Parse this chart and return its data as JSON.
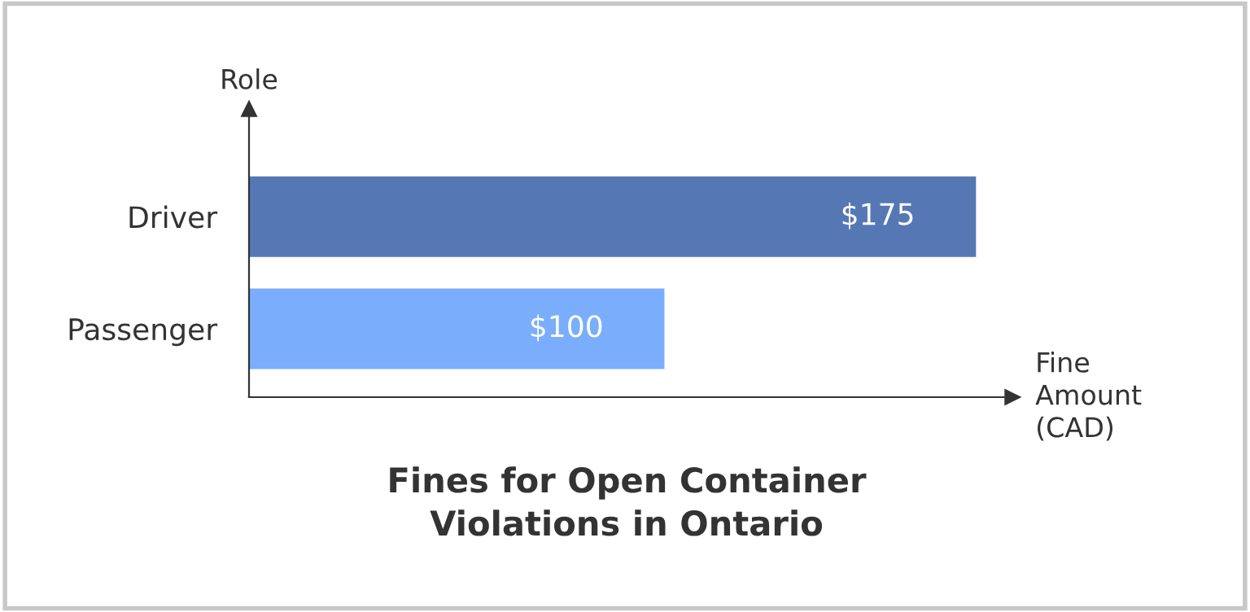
{
  "chart_data": {
    "type": "bar",
    "orientation": "horizontal",
    "title": "Fines for Open Container\nViolations in Ontario",
    "xlabel": "Fine\nAmount\n(CAD)",
    "ylabel": "Role",
    "categories": [
      "Driver",
      "Passenger"
    ],
    "values": [
      175,
      100
    ],
    "colors": [
      "#5578b5",
      "#7aaefc"
    ],
    "value_labels": [
      "$175",
      "$100"
    ],
    "grid": false,
    "tick_labels": "y"
  }
}
